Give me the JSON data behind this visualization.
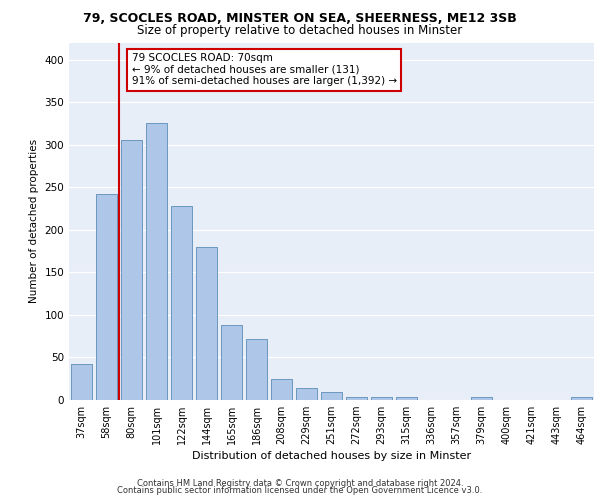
{
  "title_line1": "79, SCOCLES ROAD, MINSTER ON SEA, SHEERNESS, ME12 3SB",
  "title_line2": "Size of property relative to detached houses in Minster",
  "xlabel": "Distribution of detached houses by size in Minster",
  "ylabel": "Number of detached properties",
  "categories": [
    "37sqm",
    "58sqm",
    "80sqm",
    "101sqm",
    "122sqm",
    "144sqm",
    "165sqm",
    "186sqm",
    "208sqm",
    "229sqm",
    "251sqm",
    "272sqm",
    "293sqm",
    "315sqm",
    "336sqm",
    "357sqm",
    "379sqm",
    "400sqm",
    "421sqm",
    "443sqm",
    "464sqm"
  ],
  "values": [
    42,
    242,
    305,
    325,
    228,
    180,
    88,
    72,
    25,
    14,
    9,
    4,
    4,
    4,
    0,
    0,
    4,
    0,
    0,
    0,
    3
  ],
  "bar_color": "#aec6e8",
  "bar_edge_color": "#5b8db8",
  "vline_x_idx": 1.5,
  "vline_color": "#cc0000",
  "annotation_text": "79 SCOCLES ROAD: 70sqm\n← 9% of detached houses are smaller (131)\n91% of semi-detached houses are larger (1,392) →",
  "annotation_box_color": "#ffffff",
  "annotation_box_edge": "#cc0000",
  "ylim": [
    0,
    420
  ],
  "yticks": [
    0,
    50,
    100,
    150,
    200,
    250,
    300,
    350,
    400
  ],
  "background_color": "#e8eef7",
  "grid_color": "#ffffff",
  "footer_line1": "Contains HM Land Registry data © Crown copyright and database right 2024.",
  "footer_line2": "Contains public sector information licensed under the Open Government Licence v3.0."
}
